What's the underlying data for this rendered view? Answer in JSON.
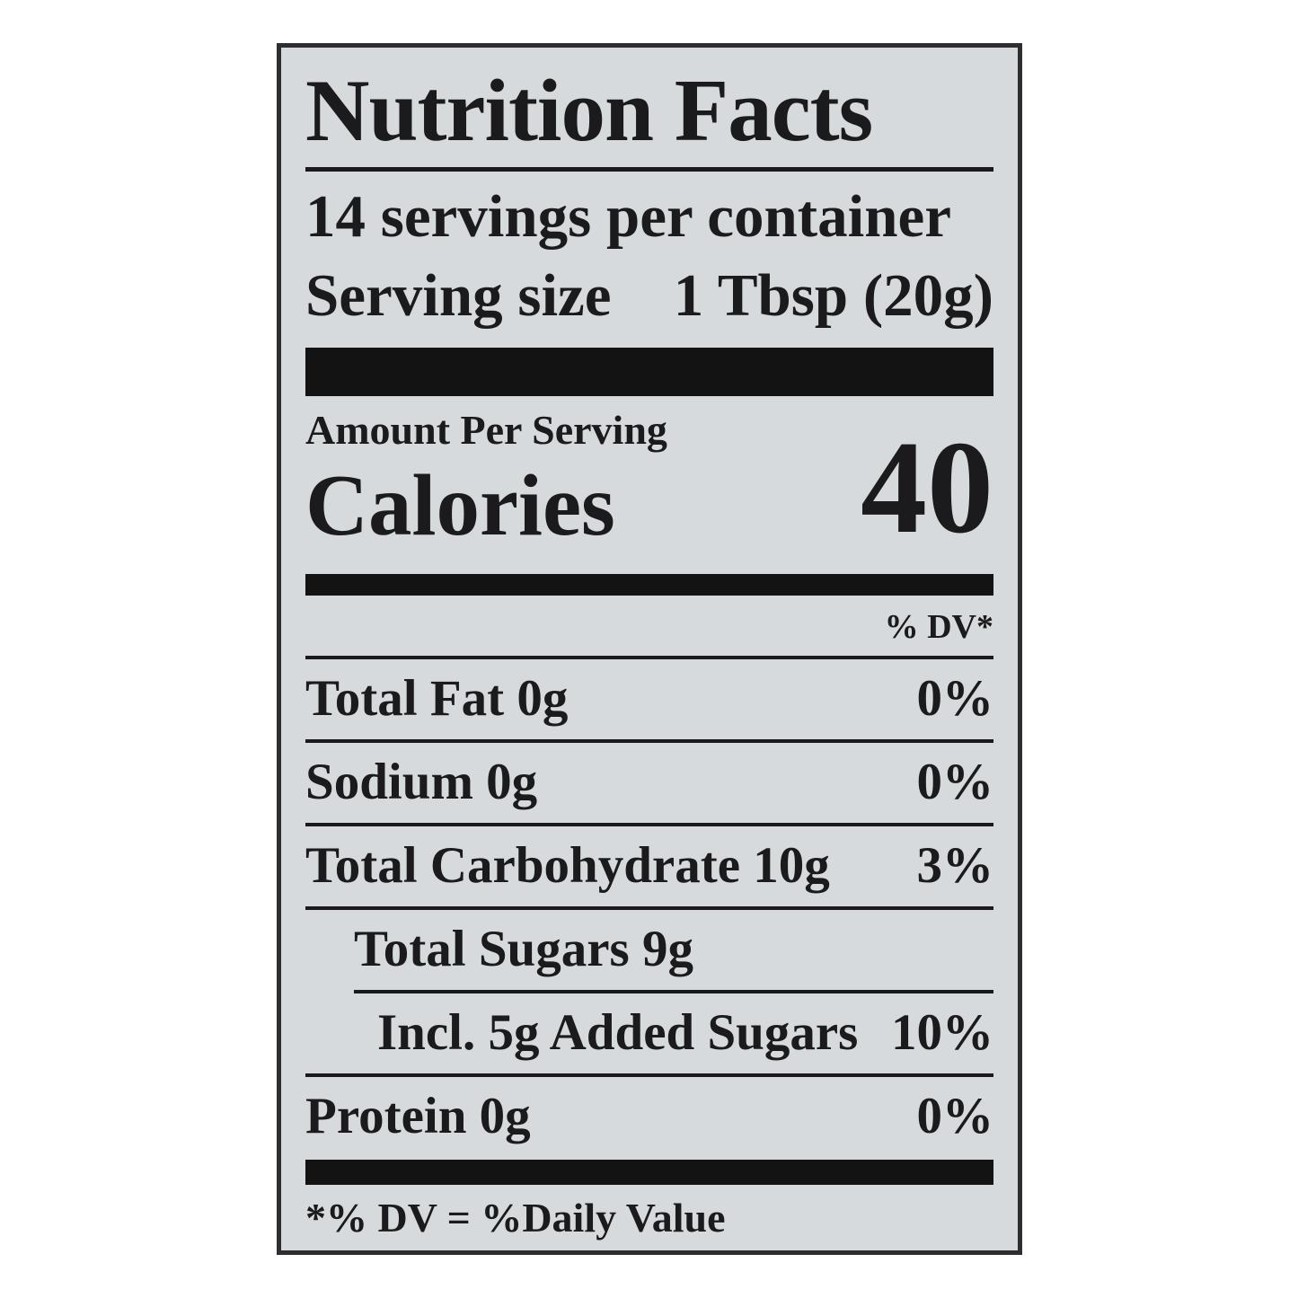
{
  "label": {
    "title": "Nutrition Facts",
    "servings_per_container": "14 servings per container",
    "serving_size_label": "Serving size",
    "serving_size_value": "1 Tbsp (20g)",
    "amount_per_serving": "Amount Per Serving",
    "calories_label": "Calories",
    "calories_value": "40",
    "dv_header": "% DV*",
    "rows": [
      {
        "name": "Total Fat 0g",
        "dv": "0%"
      },
      {
        "name": "Sodium 0g",
        "dv": "0%"
      },
      {
        "name": "Total Carbohydrate 10g",
        "dv": "3%"
      },
      {
        "name": "Total Sugars 9g",
        "dv": ""
      },
      {
        "name": "Incl. 5g Added Sugars",
        "dv": "10%"
      },
      {
        "name": "Protein 0g",
        "dv": "0%"
      }
    ],
    "footnote": "*% DV = %Daily Value",
    "colors": {
      "page_bg": "#ffffff",
      "label_bg": "#d7dadc",
      "text": "#1b1b1d",
      "bar": "#131314",
      "border": "#2e2e30"
    }
  }
}
